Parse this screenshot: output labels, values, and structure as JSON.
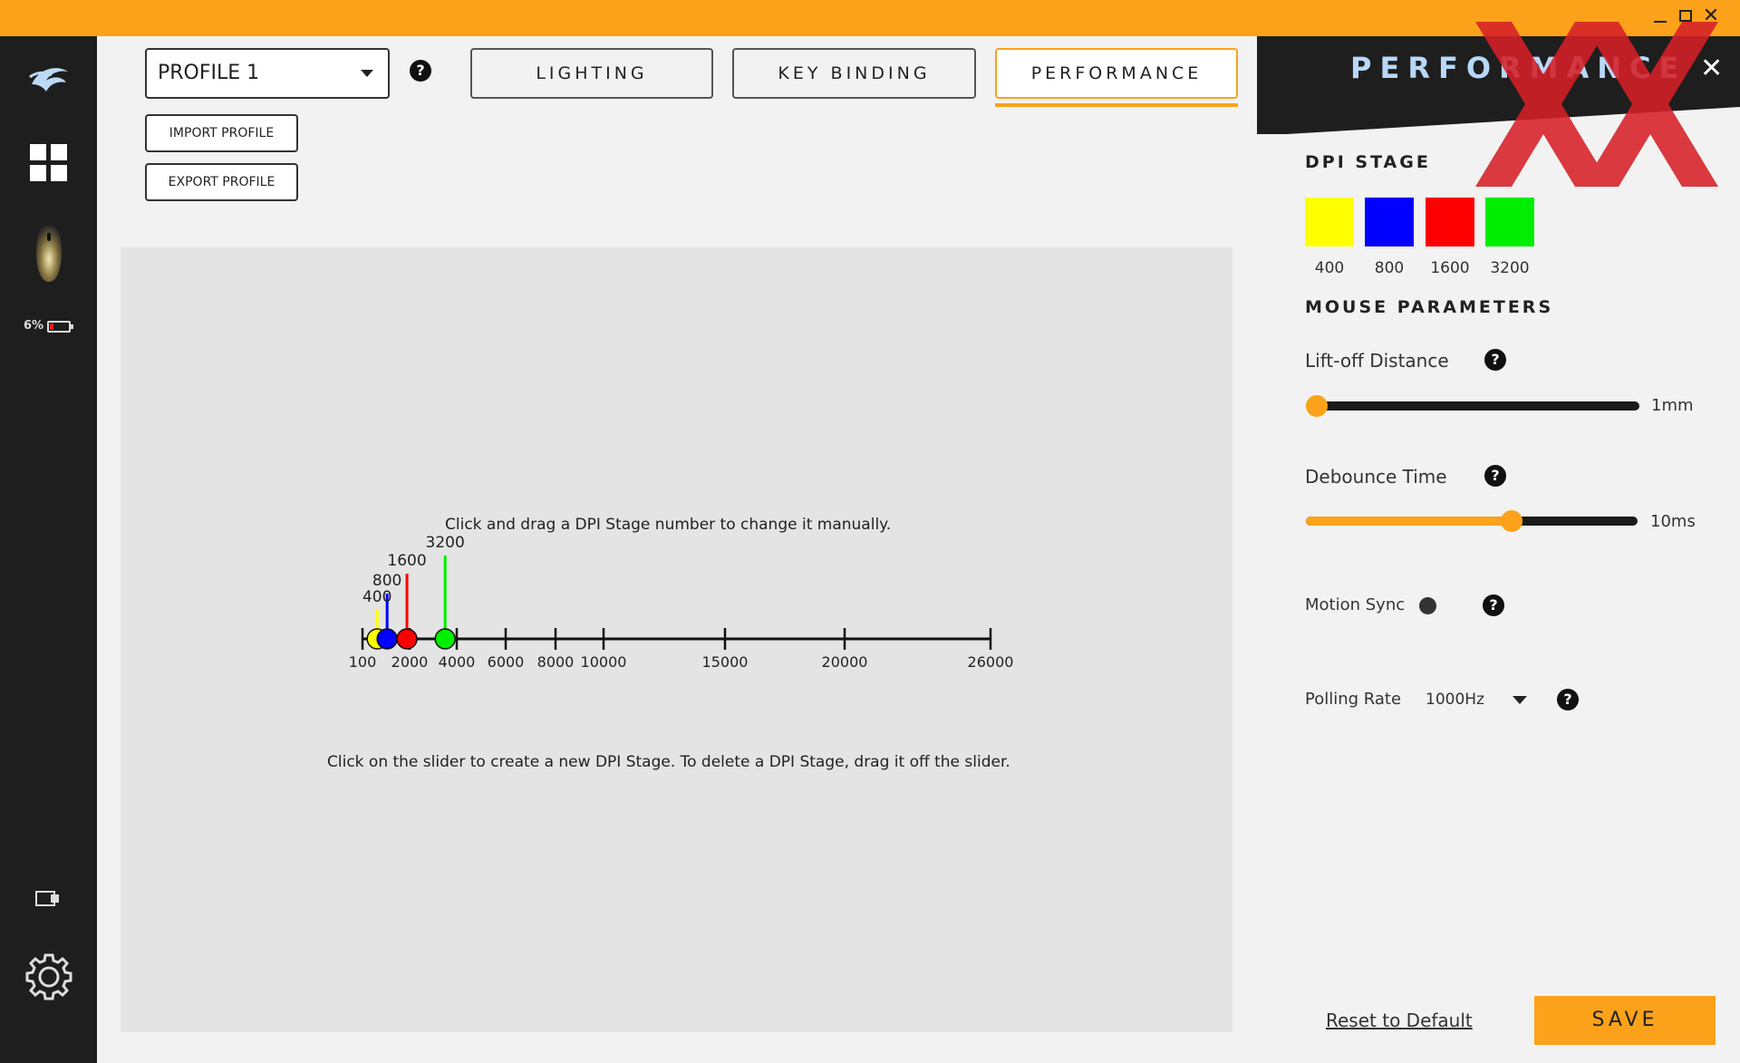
{
  "window": {
    "controls": [
      "minimize",
      "maximize",
      "close"
    ]
  },
  "sidebar": {
    "battery_percent": "6%",
    "battery_level": 0.06
  },
  "top": {
    "profile_value": "PROFILE 1",
    "tabs": [
      {
        "label": "LIGHTING"
      },
      {
        "label": "KEY BINDING"
      },
      {
        "label": "PERFORMANCE"
      }
    ],
    "import_label": "IMPORT PROFILE",
    "export_label": "EXPORT PROFILE"
  },
  "dpi_slider": {
    "instruction_top": "Click and drag a DPI Stage number to change it manually.",
    "instruction_bottom": "Click on the slider to create a new DPI Stage. To delete a DPI Stage, drag it off the slider.",
    "ticks": [
      "100",
      "2000",
      "4000",
      "6000",
      "8000",
      "10000",
      "15000",
      "20000",
      "26000"
    ],
    "stages": [
      {
        "value": "400",
        "color": "#ffff00"
      },
      {
        "value": "800",
        "color": "#0000ff"
      },
      {
        "value": "1600",
        "color": "#ff0000"
      },
      {
        "value": "3200",
        "color": "#00ee00"
      }
    ]
  },
  "panel": {
    "title": "PERFORMANCE",
    "dpi_stage_title": "DPI STAGE",
    "stages": [
      {
        "label": "400",
        "color": "#ffff00"
      },
      {
        "label": "800",
        "color": "#0000ff"
      },
      {
        "label": "1600",
        "color": "#ff0000"
      },
      {
        "label": "3200",
        "color": "#00ee00"
      }
    ],
    "mouse_params_title": "MOUSE PARAMETERS",
    "liftoff_label": "Lift-off Distance",
    "liftoff_value": "1mm",
    "liftoff_level": 0.0,
    "debounce_label": "Debounce Time",
    "debounce_value": "10ms",
    "debounce_level": 0.62,
    "motion_sync_label": "Motion Sync",
    "polling_label": "Polling Rate",
    "polling_value": "1000Hz",
    "reset_label": "Reset to Default",
    "save_label": "SAVE"
  },
  "colors": {
    "accent": "#fba21a",
    "sidebar_bg": "#1e1e1e",
    "watermark": "#d62027"
  }
}
